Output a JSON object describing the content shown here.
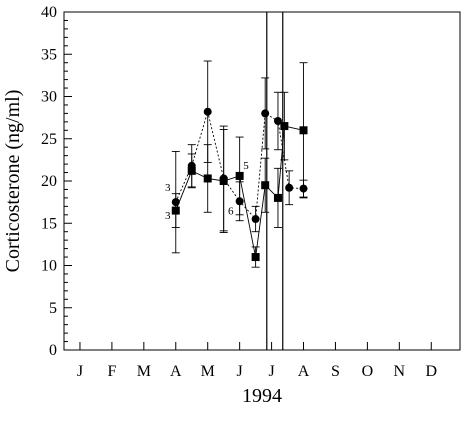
{
  "chart_data": {
    "type": "line",
    "title": "",
    "xlabel": "1994",
    "ylabel": "Corticosterone (ng/ml)",
    "ylim": [
      0,
      40
    ],
    "y_major_ticks": [
      0,
      5,
      10,
      15,
      20,
      25,
      30,
      35,
      40
    ],
    "y_minor_step": 1,
    "x_month_labels": [
      "J",
      "F",
      "M",
      "A",
      "M",
      "J",
      "J",
      "A",
      "S",
      "O",
      "N",
      "D"
    ],
    "xlim_months": [
      0,
      12.4
    ],
    "grid": false,
    "legend": "none",
    "series": [
      {
        "marker": "circle",
        "line_style": "dotted",
        "points": [
          {
            "month": 3.5,
            "y": 17.5,
            "err": 6.0
          },
          {
            "month": 4.0,
            "y": 21.8,
            "err": 2.5
          },
          {
            "month": 4.5,
            "y": 28.2,
            "err": 6.0
          },
          {
            "month": 5.0,
            "y": 20.3,
            "err": 6.2
          },
          {
            "month": 5.5,
            "y": 17.6,
            "err": 2.3
          },
          {
            "month": 6.0,
            "y": 15.5,
            "err": 1.5
          },
          {
            "month": 6.3,
            "y": 28.0,
            "err": 4.2
          },
          {
            "month": 6.7,
            "y": 27.1,
            "err": 3.4
          },
          {
            "month": 7.05,
            "y": 19.2,
            "err": 2.0
          },
          {
            "month": 7.5,
            "y": 19.1,
            "err": 1.0
          }
        ]
      },
      {
        "marker": "square",
        "line_style": "solid",
        "points": [
          {
            "month": 3.5,
            "y": 16.5,
            "err": 2.0
          },
          {
            "month": 4.0,
            "y": 21.2,
            "err": 2.0
          },
          {
            "month": 4.5,
            "y": 20.3,
            "err": 4.0
          },
          {
            "month": 5.0,
            "y": 20.0,
            "err": 6.1
          },
          {
            "month": 5.5,
            "y": 20.6,
            "err": 4.6
          },
          {
            "month": 6.0,
            "y": 11.0,
            "err": 1.2
          },
          {
            "month": 6.3,
            "y": 19.5,
            "err": 3.2
          },
          {
            "month": 6.7,
            "y": 18.0,
            "err": 3.5
          },
          {
            "month": 6.9,
            "y": 26.5,
            "err": 4.0
          },
          {
            "month": 7.5,
            "y": 26.0,
            "err": 8.0
          }
        ]
      }
    ],
    "vertical_lines_months": [
      6.35,
      6.85
    ],
    "annotations": [
      {
        "text": "3",
        "month": 3.25,
        "y": 19.3
      },
      {
        "text": "3",
        "month": 3.25,
        "y": 16.0
      },
      {
        "text": "6",
        "month": 5.22,
        "y": 16.5
      },
      {
        "text": "5",
        "month": 5.7,
        "y": 21.9
      }
    ]
  }
}
